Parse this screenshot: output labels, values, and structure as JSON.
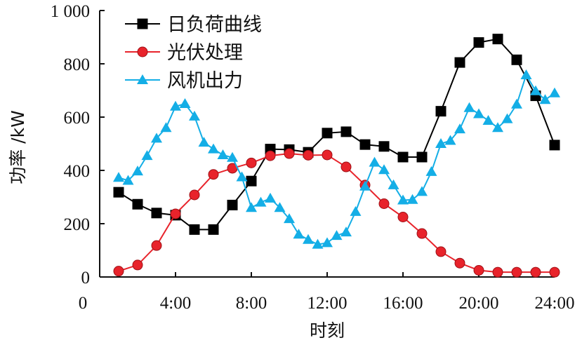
{
  "chart_data": {
    "type": "line",
    "title": "",
    "xlabel": "时刻",
    "ylabel": "功率 /kW",
    "xlim": [
      0,
      24
    ],
    "ylim": [
      0,
      1000
    ],
    "x_ticks": [
      4,
      8,
      12,
      16,
      20,
      24
    ],
    "x_tick_labels": [
      "4:00",
      "8:00",
      "12:00",
      "16:00",
      "20:00",
      "24:00"
    ],
    "y_ticks": [
      0,
      200,
      400,
      600,
      800,
      1000
    ],
    "y_tick_labels": [
      "0",
      "200",
      "400",
      "600",
      "800",
      "1 000"
    ],
    "grid": false,
    "legend_position": "top-left",
    "series": [
      {
        "name": "日负荷曲线",
        "color": "#000000",
        "marker": "square",
        "x": [
          1,
          2,
          3,
          4,
          5,
          6,
          7,
          8,
          9,
          10,
          11,
          12,
          13,
          14,
          15,
          16,
          17,
          18,
          19,
          20,
          21,
          22,
          23,
          24
        ],
        "values": [
          318,
          273,
          240,
          232,
          178,
          178,
          270,
          360,
          480,
          478,
          468,
          540,
          545,
          497,
          490,
          450,
          450,
          622,
          805,
          880,
          893,
          815,
          680,
          495
        ]
      },
      {
        "name": "光伏处理",
        "color": "#e8232b",
        "marker": "circle",
        "x": [
          1,
          2,
          3,
          4,
          5,
          6,
          7,
          8,
          9,
          10,
          11,
          12,
          13,
          14,
          15,
          16,
          17,
          18,
          19,
          20,
          21,
          22,
          23,
          24
        ],
        "values": [
          22,
          45,
          118,
          237,
          308,
          385,
          408,
          428,
          455,
          463,
          457,
          458,
          413,
          345,
          275,
          225,
          163,
          95,
          52,
          25,
          18,
          18,
          18,
          18
        ]
      },
      {
        "name": "风机出力",
        "color": "#14aee6",
        "marker": "triangle",
        "x": [
          1,
          1.5,
          2,
          2.5,
          3,
          3.5,
          4,
          4.5,
          5,
          5.5,
          6,
          6.5,
          7,
          7.5,
          8,
          8.5,
          9,
          9.5,
          10,
          10.5,
          11,
          11.5,
          12,
          12.5,
          13,
          13.5,
          14,
          14.5,
          15,
          15.5,
          16,
          16.5,
          17,
          17.5,
          18,
          18.5,
          19,
          19.5,
          20,
          20.5,
          21,
          21.5,
          22,
          22.5,
          23,
          23.5,
          24
        ],
        "values": [
          373,
          362,
          397,
          455,
          520,
          560,
          640,
          650,
          603,
          505,
          480,
          458,
          448,
          375,
          260,
          280,
          295,
          260,
          218,
          160,
          140,
          122,
          128,
          155,
          168,
          245,
          340,
          430,
          402,
          345,
          288,
          290,
          320,
          395,
          500,
          512,
          555,
          635,
          612,
          587,
          560,
          593,
          648,
          758,
          698,
          665,
          690
        ]
      }
    ]
  }
}
